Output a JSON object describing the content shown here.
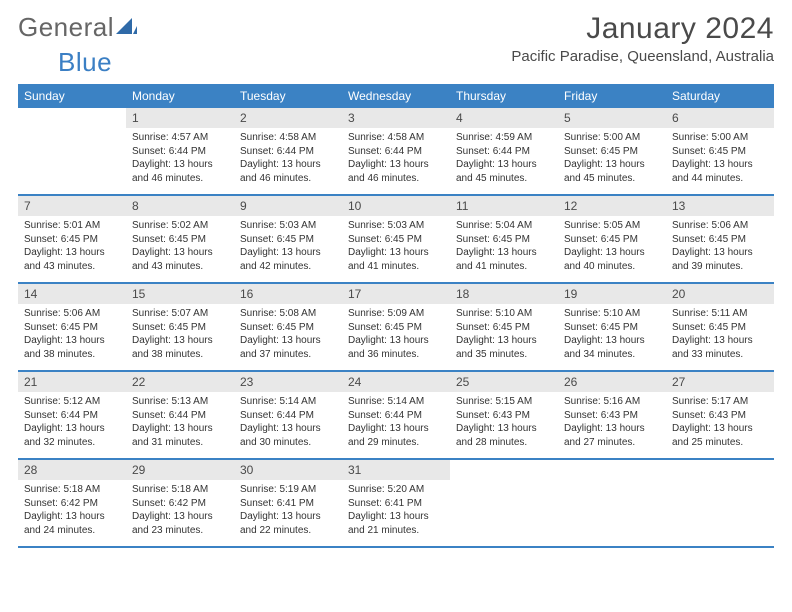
{
  "brand": {
    "part1": "General",
    "part2": "Blue"
  },
  "colors": {
    "header_bg": "#3b82c4",
    "header_text": "#ffffff",
    "daynum_bg": "#e8e8e8",
    "text": "#333333",
    "border": "#3b82c4"
  },
  "title": "January 2024",
  "location": "Pacific Paradise, Queensland, Australia",
  "day_names": [
    "Sunday",
    "Monday",
    "Tuesday",
    "Wednesday",
    "Thursday",
    "Friday",
    "Saturday"
  ],
  "fonts": {
    "title_size": 30,
    "location_size": 15,
    "dayhead_size": 12,
    "cell_num_size": 12,
    "cell_info_size": 10
  },
  "grid": {
    "cols": 7,
    "rows": 5,
    "start_offset": 1,
    "days_in_month": 31
  },
  "days": [
    {
      "n": 1,
      "sunrise": "4:57 AM",
      "sunset": "6:44 PM",
      "daylight": "13 hours and 46 minutes."
    },
    {
      "n": 2,
      "sunrise": "4:58 AM",
      "sunset": "6:44 PM",
      "daylight": "13 hours and 46 minutes."
    },
    {
      "n": 3,
      "sunrise": "4:58 AM",
      "sunset": "6:44 PM",
      "daylight": "13 hours and 46 minutes."
    },
    {
      "n": 4,
      "sunrise": "4:59 AM",
      "sunset": "6:44 PM",
      "daylight": "13 hours and 45 minutes."
    },
    {
      "n": 5,
      "sunrise": "5:00 AM",
      "sunset": "6:45 PM",
      "daylight": "13 hours and 45 minutes."
    },
    {
      "n": 6,
      "sunrise": "5:00 AM",
      "sunset": "6:45 PM",
      "daylight": "13 hours and 44 minutes."
    },
    {
      "n": 7,
      "sunrise": "5:01 AM",
      "sunset": "6:45 PM",
      "daylight": "13 hours and 43 minutes."
    },
    {
      "n": 8,
      "sunrise": "5:02 AM",
      "sunset": "6:45 PM",
      "daylight": "13 hours and 43 minutes."
    },
    {
      "n": 9,
      "sunrise": "5:03 AM",
      "sunset": "6:45 PM",
      "daylight": "13 hours and 42 minutes."
    },
    {
      "n": 10,
      "sunrise": "5:03 AM",
      "sunset": "6:45 PM",
      "daylight": "13 hours and 41 minutes."
    },
    {
      "n": 11,
      "sunrise": "5:04 AM",
      "sunset": "6:45 PM",
      "daylight": "13 hours and 41 minutes."
    },
    {
      "n": 12,
      "sunrise": "5:05 AM",
      "sunset": "6:45 PM",
      "daylight": "13 hours and 40 minutes."
    },
    {
      "n": 13,
      "sunrise": "5:06 AM",
      "sunset": "6:45 PM",
      "daylight": "13 hours and 39 minutes."
    },
    {
      "n": 14,
      "sunrise": "5:06 AM",
      "sunset": "6:45 PM",
      "daylight": "13 hours and 38 minutes."
    },
    {
      "n": 15,
      "sunrise": "5:07 AM",
      "sunset": "6:45 PM",
      "daylight": "13 hours and 38 minutes."
    },
    {
      "n": 16,
      "sunrise": "5:08 AM",
      "sunset": "6:45 PM",
      "daylight": "13 hours and 37 minutes."
    },
    {
      "n": 17,
      "sunrise": "5:09 AM",
      "sunset": "6:45 PM",
      "daylight": "13 hours and 36 minutes."
    },
    {
      "n": 18,
      "sunrise": "5:10 AM",
      "sunset": "6:45 PM",
      "daylight": "13 hours and 35 minutes."
    },
    {
      "n": 19,
      "sunrise": "5:10 AM",
      "sunset": "6:45 PM",
      "daylight": "13 hours and 34 minutes."
    },
    {
      "n": 20,
      "sunrise": "5:11 AM",
      "sunset": "6:45 PM",
      "daylight": "13 hours and 33 minutes."
    },
    {
      "n": 21,
      "sunrise": "5:12 AM",
      "sunset": "6:44 PM",
      "daylight": "13 hours and 32 minutes."
    },
    {
      "n": 22,
      "sunrise": "5:13 AM",
      "sunset": "6:44 PM",
      "daylight": "13 hours and 31 minutes."
    },
    {
      "n": 23,
      "sunrise": "5:14 AM",
      "sunset": "6:44 PM",
      "daylight": "13 hours and 30 minutes."
    },
    {
      "n": 24,
      "sunrise": "5:14 AM",
      "sunset": "6:44 PM",
      "daylight": "13 hours and 29 minutes."
    },
    {
      "n": 25,
      "sunrise": "5:15 AM",
      "sunset": "6:43 PM",
      "daylight": "13 hours and 28 minutes."
    },
    {
      "n": 26,
      "sunrise": "5:16 AM",
      "sunset": "6:43 PM",
      "daylight": "13 hours and 27 minutes."
    },
    {
      "n": 27,
      "sunrise": "5:17 AM",
      "sunset": "6:43 PM",
      "daylight": "13 hours and 25 minutes."
    },
    {
      "n": 28,
      "sunrise": "5:18 AM",
      "sunset": "6:42 PM",
      "daylight": "13 hours and 24 minutes."
    },
    {
      "n": 29,
      "sunrise": "5:18 AM",
      "sunset": "6:42 PM",
      "daylight": "13 hours and 23 minutes."
    },
    {
      "n": 30,
      "sunrise": "5:19 AM",
      "sunset": "6:41 PM",
      "daylight": "13 hours and 22 minutes."
    },
    {
      "n": 31,
      "sunrise": "5:20 AM",
      "sunset": "6:41 PM",
      "daylight": "13 hours and 21 minutes."
    }
  ],
  "labels": {
    "sunrise": "Sunrise:",
    "sunset": "Sunset:",
    "daylight": "Daylight:"
  }
}
